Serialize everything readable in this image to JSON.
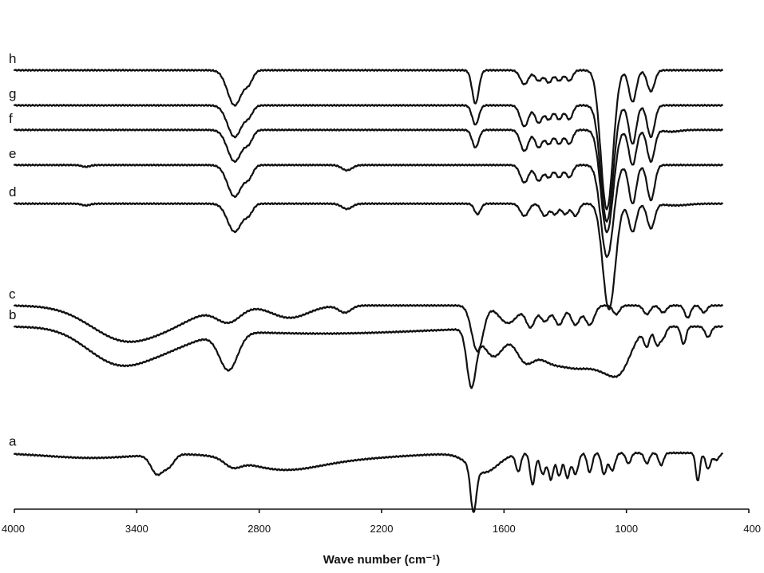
{
  "chart_data": {
    "type": "line",
    "title": "",
    "xlabel": "Wave number (cm⁻¹)",
    "ylabel": "",
    "xlim": [
      4000,
      400
    ],
    "ylim": [
      0,
      14
    ],
    "x_ticks": [
      4000,
      3400,
      2800,
      2200,
      1600,
      1000,
      400
    ],
    "x_tick_labels": [
      "4000",
      "3400",
      "2800",
      "2200",
      "1600",
      "1000",
      "400"
    ],
    "grid": false,
    "legend": "none",
    "colors": {
      "line": "#111111",
      "axis": "#111111",
      "background": "#ffffff"
    },
    "series": [
      {
        "name": "a",
        "baseline": 1.6,
        "start": 4000,
        "end": 530,
        "bands": [
          [
            3620,
            0.14,
            220
          ],
          [
            3300,
            0.55,
            30
          ],
          [
            3240,
            0.3,
            25
          ],
          [
            2930,
            0.22,
            40
          ],
          [
            2700,
            0.35,
            180
          ],
          [
            2450,
            0.18,
            300
          ],
          [
            1750,
            1.25,
            14
          ],
          [
            1700,
            0.55,
            70
          ],
          [
            1530,
            0.5,
            12
          ],
          [
            1460,
            0.9,
            12
          ],
          [
            1410,
            0.6,
            14
          ],
          [
            1370,
            0.75,
            12
          ],
          [
            1330,
            0.65,
            12
          ],
          [
            1290,
            0.7,
            12
          ],
          [
            1250,
            0.6,
            14
          ],
          [
            1180,
            0.55,
            12
          ],
          [
            1110,
            0.6,
            12
          ],
          [
            1070,
            0.5,
            14
          ],
          [
            990,
            0.3,
            12
          ],
          [
            900,
            0.3,
            12
          ],
          [
            830,
            0.35,
            12
          ],
          [
            650,
            0.8,
            10
          ],
          [
            600,
            0.45,
            12
          ],
          [
            560,
            0.2,
            14
          ]
        ]
      },
      {
        "name": "b",
        "baseline": 5.2,
        "start": 4000,
        "end": 530,
        "bands": [
          [
            3500,
            0.95,
            150
          ],
          [
            3250,
            0.45,
            150
          ],
          [
            2950,
            1.05,
            45
          ],
          [
            2500,
            0.2,
            500
          ],
          [
            1760,
            1.6,
            22
          ],
          [
            1650,
            0.8,
            50
          ],
          [
            1500,
            0.8,
            45
          ],
          [
            1380,
            0.85,
            70
          ],
          [
            1250,
            0.85,
            70
          ],
          [
            1100,
            1.1,
            80
          ],
          [
            1020,
            0.6,
            50
          ],
          [
            900,
            0.5,
            14
          ],
          [
            850,
            0.5,
            14
          ],
          [
            820,
            0.3,
            14
          ],
          [
            720,
            0.5,
            12
          ],
          [
            600,
            0.3,
            14
          ]
        ]
      },
      {
        "name": "c",
        "baseline": 5.8,
        "start": 4000,
        "end": 530,
        "bands": [
          [
            3450,
            1.0,
            170
          ],
          [
            3200,
            0.25,
            120
          ],
          [
            2950,
            0.45,
            60
          ],
          [
            2650,
            0.35,
            90
          ],
          [
            2380,
            0.2,
            30
          ],
          [
            1730,
            1.3,
            28
          ],
          [
            1580,
            0.5,
            45
          ],
          [
            1470,
            0.6,
            22
          ],
          [
            1400,
            0.45,
            22
          ],
          [
            1330,
            0.55,
            22
          ],
          [
            1250,
            0.55,
            22
          ],
          [
            1180,
            0.55,
            22
          ],
          [
            1050,
            0.25,
            16
          ],
          [
            900,
            0.25,
            16
          ],
          [
            820,
            0.2,
            16
          ],
          [
            700,
            0.35,
            14
          ],
          [
            620,
            0.2,
            14
          ]
        ]
      },
      {
        "name": "d",
        "baseline": 8.7,
        "start": 4000,
        "end": 530,
        "bands": [
          [
            3650,
            0.05,
            20
          ],
          [
            2920,
            0.8,
            35
          ],
          [
            2850,
            0.25,
            20
          ],
          [
            2370,
            0.15,
            25
          ],
          [
            1730,
            0.3,
            15
          ],
          [
            1500,
            0.35,
            20
          ],
          [
            1400,
            0.35,
            18
          ],
          [
            1350,
            0.3,
            16
          ],
          [
            1300,
            0.3,
            16
          ],
          [
            1250,
            0.35,
            16
          ],
          [
            1090,
            2.7,
            28
          ],
          [
            1060,
            0.6,
            24
          ],
          [
            970,
            0.8,
            18
          ],
          [
            880,
            0.7,
            18
          ],
          [
            760,
            0.05,
            60
          ]
        ]
      },
      {
        "name": "e",
        "baseline": 9.8,
        "start": 4000,
        "end": 530,
        "bands": [
          [
            3650,
            0.05,
            20
          ],
          [
            2920,
            0.9,
            35
          ],
          [
            2850,
            0.3,
            20
          ],
          [
            2370,
            0.15,
            25
          ],
          [
            1500,
            0.5,
            20
          ],
          [
            1430,
            0.45,
            18
          ],
          [
            1380,
            0.35,
            16
          ],
          [
            1330,
            0.35,
            16
          ],
          [
            1280,
            0.35,
            16
          ],
          [
            1100,
            2.3,
            28
          ],
          [
            1070,
            0.6,
            24
          ],
          [
            970,
            1.1,
            18
          ],
          [
            880,
            1.0,
            18
          ]
        ]
      },
      {
        "name": "f",
        "baseline": 10.8,
        "start": 4000,
        "end": 530,
        "bands": [
          [
            2920,
            0.9,
            35
          ],
          [
            2850,
            0.3,
            20
          ],
          [
            1740,
            0.5,
            16
          ],
          [
            1500,
            0.6,
            20
          ],
          [
            1430,
            0.5,
            18
          ],
          [
            1380,
            0.4,
            16
          ],
          [
            1330,
            0.4,
            16
          ],
          [
            1280,
            0.4,
            16
          ],
          [
            1100,
            2.6,
            28
          ],
          [
            1070,
            0.6,
            24
          ],
          [
            970,
            1.0,
            18
          ],
          [
            880,
            0.9,
            18
          ],
          [
            780,
            0.05,
            40
          ]
        ]
      },
      {
        "name": "g",
        "baseline": 11.5,
        "start": 4000,
        "end": 530,
        "bands": [
          [
            2920,
            0.9,
            35
          ],
          [
            2850,
            0.25,
            20
          ],
          [
            1740,
            0.55,
            16
          ],
          [
            1500,
            0.6,
            20
          ],
          [
            1430,
            0.5,
            18
          ],
          [
            1380,
            0.4,
            16
          ],
          [
            1330,
            0.4,
            16
          ],
          [
            1280,
            0.4,
            16
          ],
          [
            1100,
            3.0,
            28
          ],
          [
            1070,
            0.6,
            24
          ],
          [
            970,
            1.1,
            18
          ],
          [
            880,
            0.9,
            18
          ]
        ]
      },
      {
        "name": "h",
        "baseline": 12.5,
        "start": 4000,
        "end": 530,
        "bands": [
          [
            2920,
            1.0,
            35
          ],
          [
            2850,
            0.3,
            20
          ],
          [
            1740,
            0.95,
            16
          ],
          [
            1500,
            0.4,
            20
          ],
          [
            1430,
            0.3,
            18
          ],
          [
            1380,
            0.35,
            16
          ],
          [
            1330,
            0.3,
            16
          ],
          [
            1280,
            0.3,
            16
          ],
          [
            1100,
            3.6,
            28
          ],
          [
            1070,
            0.7,
            24
          ],
          [
            970,
            0.9,
            18
          ],
          [
            880,
            0.6,
            18
          ]
        ]
      }
    ]
  }
}
